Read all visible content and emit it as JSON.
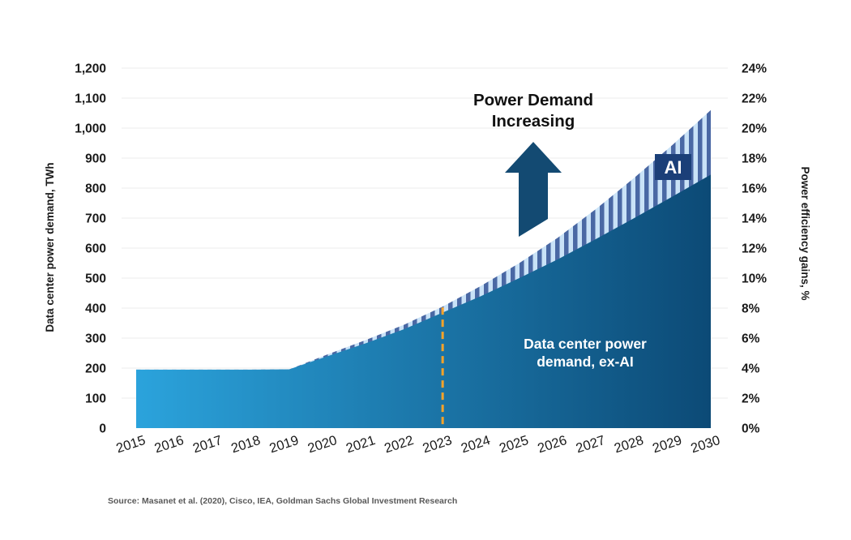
{
  "chart_data": {
    "type": "area",
    "stacked": true,
    "x": [
      2015,
      2016,
      2017,
      2018,
      2019,
      2020,
      2021,
      2022,
      2023,
      2024,
      2025,
      2026,
      2027,
      2028,
      2029,
      2030
    ],
    "series": [
      {
        "name": "Data center power demand, ex-AI",
        "values": [
          195,
          195,
          195,
          195,
          196,
          240,
          283,
          330,
          385,
          440,
          500,
          562,
          630,
          700,
          772,
          845
        ]
      },
      {
        "name": "AI",
        "values": [
          0,
          0,
          0,
          0,
          0,
          6,
          11,
          15,
          20,
          34,
          50,
          72,
          100,
          134,
          172,
          215
        ]
      }
    ],
    "ylabel_left": "Data center power demand, TWh",
    "ylabel_right": "Power efficiency gains, %",
    "ylim_left": [
      0,
      1200
    ],
    "ytick_step_left": 100,
    "ylim_right": [
      0,
      24
    ],
    "ytick_step_right": 2,
    "grid": true,
    "divider_year": 2023,
    "annotation": {
      "line1": "Power Demand",
      "line2": "Increasing"
    },
    "area_label": {
      "line1": "Data center power",
      "line2": "demand, ex-AI"
    },
    "ai_label": "AI",
    "colors": {
      "area_gradient_start": "#2BA3DC",
      "area_gradient_end": "#0C4A76",
      "stripe_light": "#C9E2F7",
      "stripe_dark": "#4A68A4",
      "ai_box_blue": "#1B3F78",
      "arrow_blue": "#134A72",
      "divider_orange": "#F7A329",
      "gridline": "#ECECEC"
    }
  },
  "source": "Source: Masanet et al. (2020), Cisco, IEA, Goldman Sachs Global Investment Research"
}
